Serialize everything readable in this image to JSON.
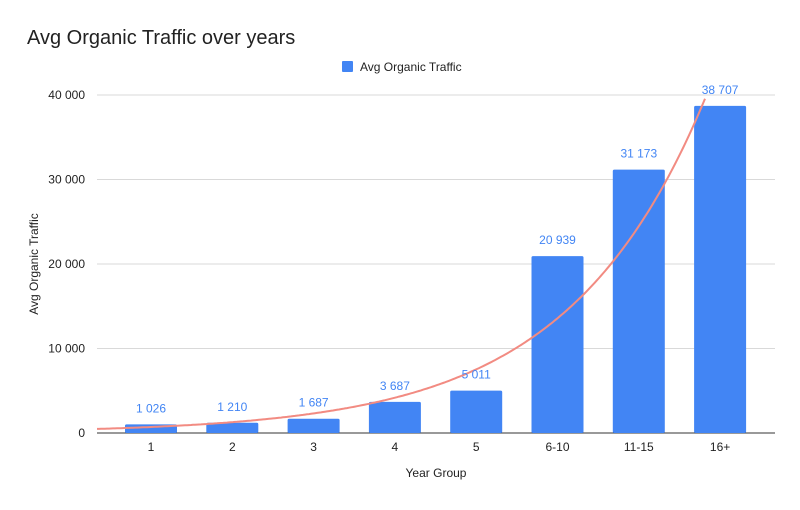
{
  "chart_data": {
    "type": "bar",
    "title": "Avg Organic Traffic over years",
    "xlabel": "Year Group",
    "ylabel": "Avg Organic Traffic",
    "categories": [
      "1",
      "2",
      "3",
      "4",
      "5",
      "6-10",
      "11-15",
      "16+"
    ],
    "series": [
      {
        "name": "Avg Organic Traffic",
        "values": [
          1026,
          1210,
          1687,
          3687,
          5011,
          20939,
          31173,
          38707
        ],
        "color": "#4285f4"
      }
    ],
    "data_labels": [
      "1 026",
      "1 210",
      "1 687",
      "3 687",
      "5 011",
      "20 939",
      "31 173",
      "38 707"
    ],
    "ylim": [
      0,
      40000
    ],
    "yticks": [
      0,
      10000,
      20000,
      30000,
      40000
    ],
    "ytick_labels": [
      "0",
      "10 000",
      "20 000",
      "30 000",
      "40 000"
    ],
    "grid": true,
    "legend": "top-center",
    "trendline": {
      "type": "exponential",
      "color": "#f28b82"
    }
  }
}
